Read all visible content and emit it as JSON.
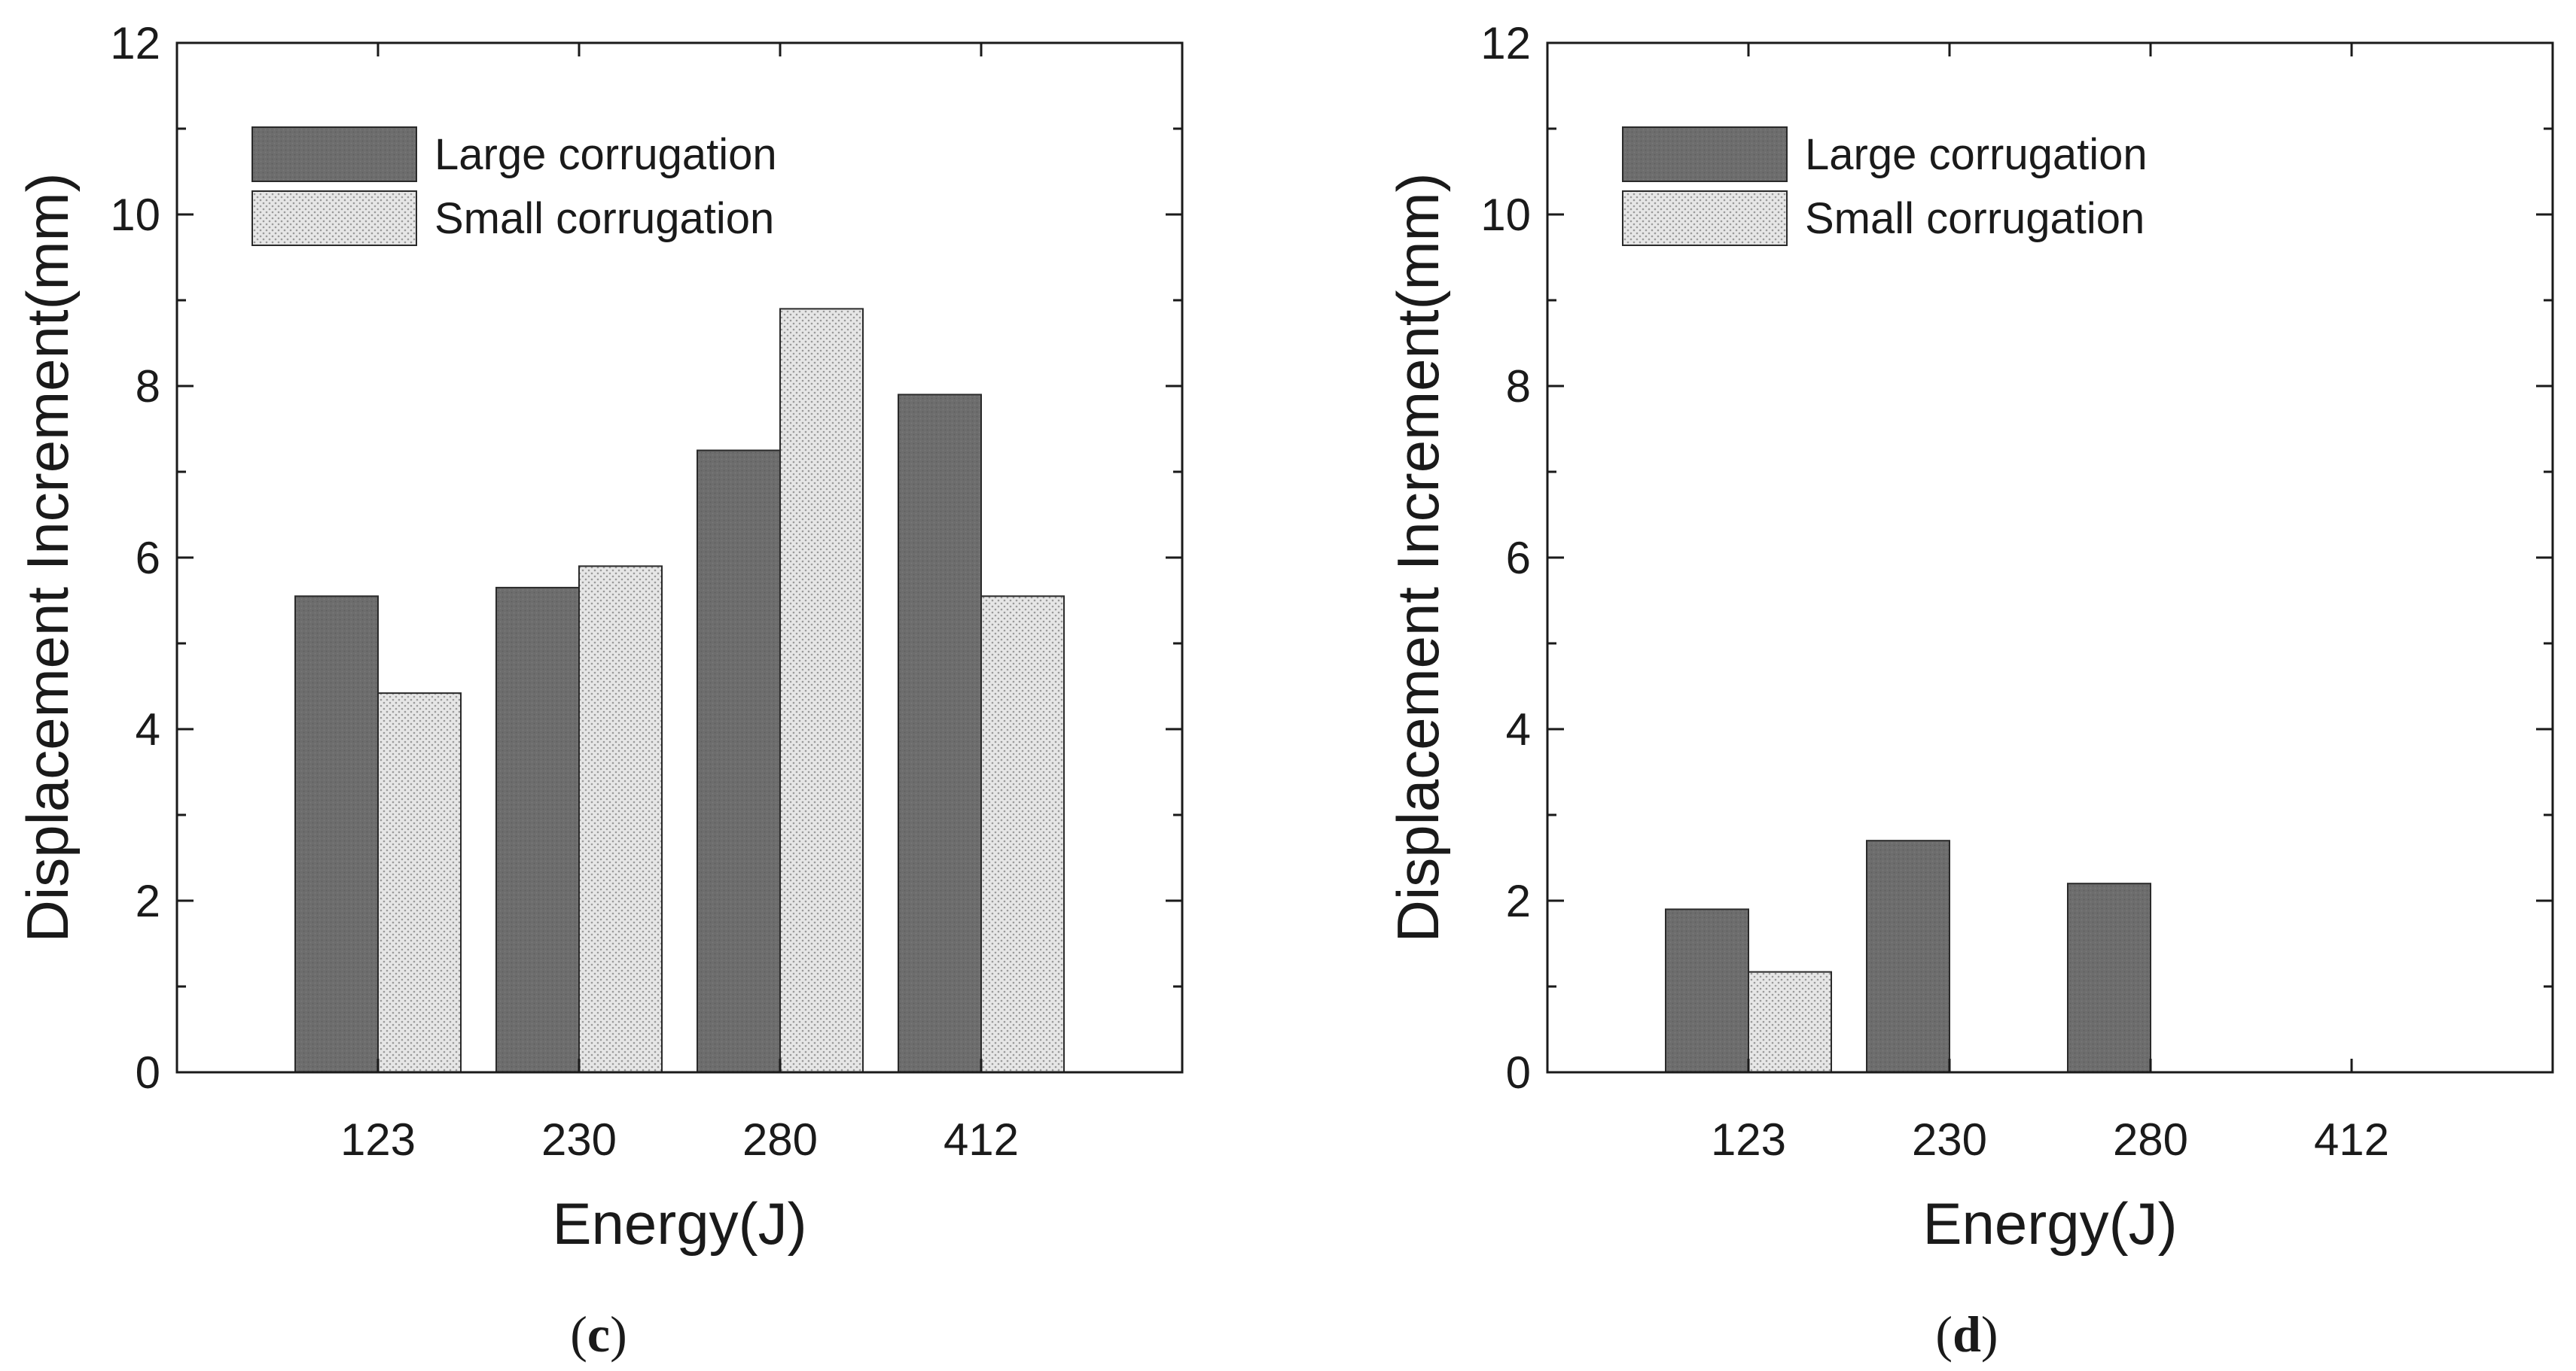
{
  "chart_data": [
    {
      "type": "bar",
      "panel": "c",
      "categories": [
        "123",
        "230",
        "280",
        "412"
      ],
      "series": [
        {
          "name": "Large corrugation",
          "values": [
            5.55,
            5.65,
            7.25,
            7.9
          ]
        },
        {
          "name": "Small corrugation",
          "values": [
            4.42,
            5.9,
            8.9,
            5.55
          ]
        }
      ],
      "xlabel": "Energy(J)",
      "ylabel": "Displacement Increment(mm)",
      "ylim": [
        0,
        12
      ],
      "yticks": [
        "0",
        "2",
        "4",
        "6",
        "8",
        "10",
        "12"
      ],
      "legend": "top-left",
      "grid": false
    },
    {
      "type": "bar",
      "panel": "d",
      "categories": [
        "123",
        "230",
        "280",
        "412"
      ],
      "series": [
        {
          "name": "Large corrugation",
          "values": [
            1.9,
            2.7,
            2.2,
            0
          ]
        },
        {
          "name": "Small corrugation",
          "values": [
            1.17,
            0,
            0,
            0
          ]
        }
      ],
      "xlabel": "Energy(J)",
      "ylabel": "Displacement Increment(mm)",
      "ylim": [
        0,
        12
      ],
      "yticks": [
        "0",
        "2",
        "4",
        "6",
        "8",
        "10",
        "12"
      ],
      "legend": "top-left",
      "grid": false
    }
  ],
  "captions": {
    "c": {
      "open": "(",
      "letter": "c",
      "close": ")"
    },
    "d": {
      "open": "(",
      "letter": "d",
      "close": ")"
    }
  },
  "colors": {
    "large": "#6d6d6d",
    "small_fill": "#e6e6e6",
    "small_dot": "#9a9a9a",
    "axis": "#1a1a1a"
  }
}
